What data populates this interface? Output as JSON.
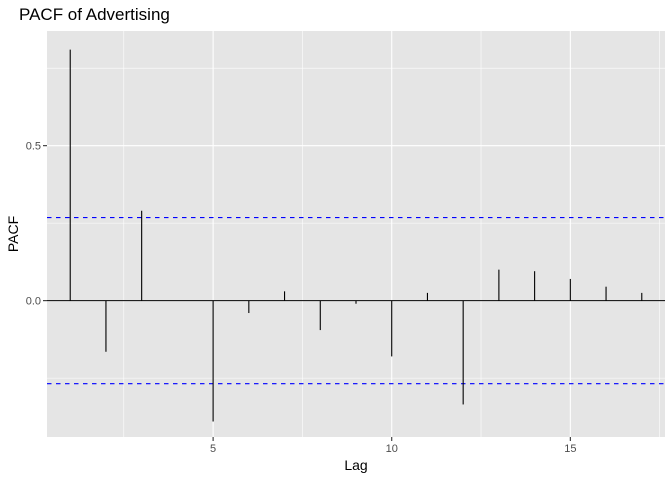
{
  "chart_data": {
    "type": "bar",
    "title": "PACF of Advertising",
    "xlabel": "Lag",
    "ylabel": "PACF",
    "x": [
      1,
      2,
      3,
      4,
      5,
      6,
      7,
      8,
      9,
      10,
      11,
      12,
      13,
      14,
      15,
      16,
      17
    ],
    "values": [
      0.81,
      -0.165,
      0.29,
      0.0,
      -0.39,
      -0.04,
      0.03,
      -0.095,
      -0.01,
      -0.18,
      0.025,
      -0.335,
      0.1,
      0.095,
      0.07,
      0.045,
      0.025
    ],
    "xlim": [
      0.35,
      17.65
    ],
    "ylim": [
      -0.44,
      0.87
    ],
    "x_ticks": [
      5,
      10,
      15
    ],
    "y_ticks": [
      0.0,
      0.5
    ],
    "x_tick_labels": [
      "5",
      "10",
      "15"
    ],
    "y_tick_labels": [
      "0.0",
      "0.5"
    ],
    "confidence_bounds": [
      0.268,
      -0.268
    ],
    "confidence_color": "#0000ff",
    "bar_color": "#000000",
    "panel_color": "#e5e5e5",
    "grid_color": "#ffffff",
    "grid": true,
    "legend": "none"
  }
}
